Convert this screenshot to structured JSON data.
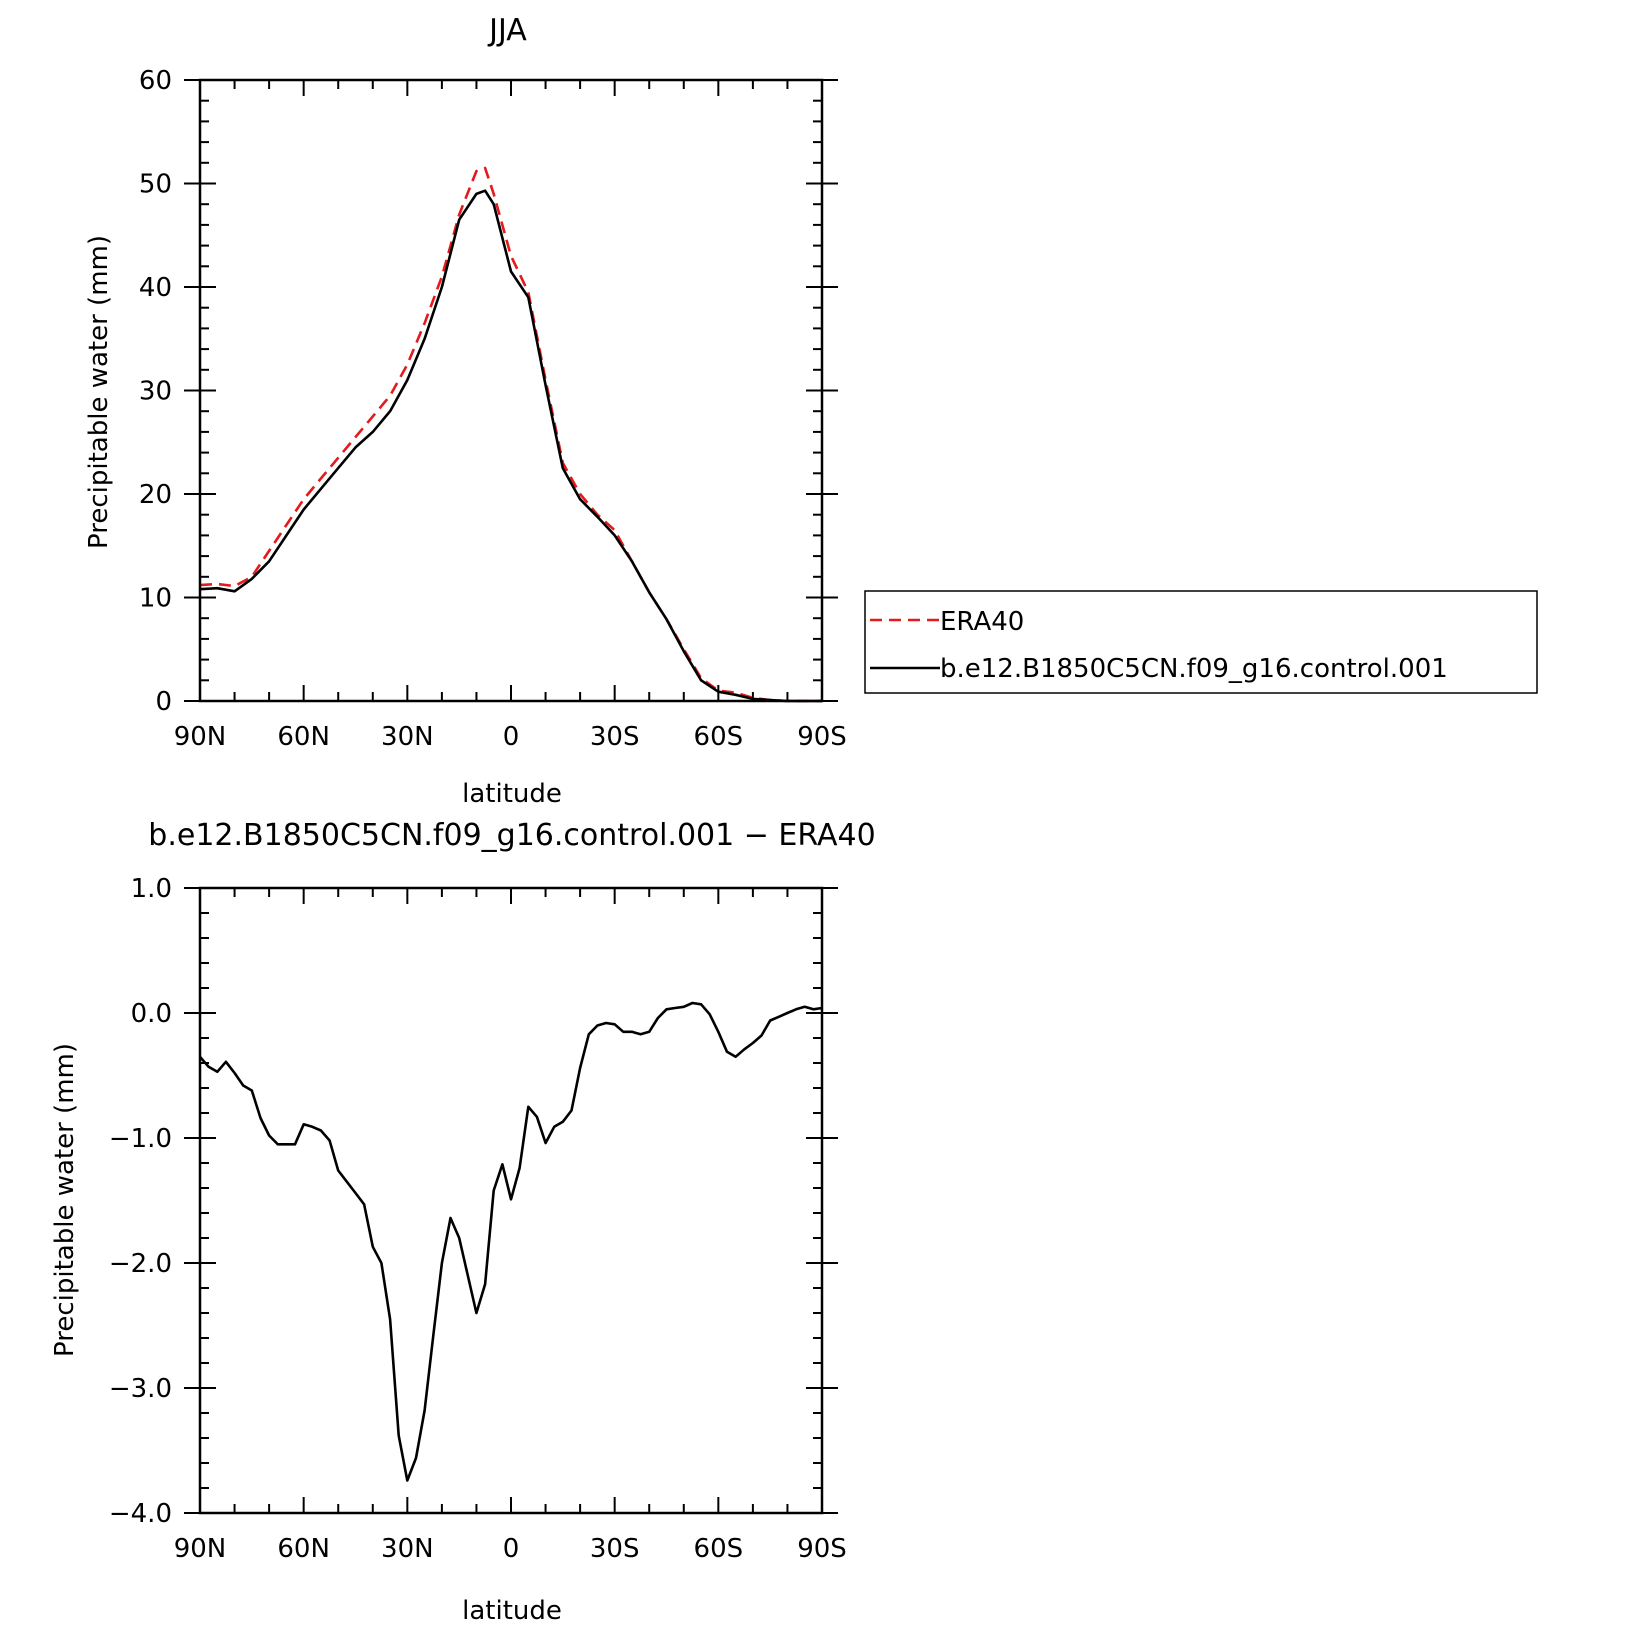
{
  "chart_data": [
    {
      "type": "line",
      "title": "JJA",
      "xlabel": "latitude",
      "ylabel": "Precipitable water (mm)",
      "xlim": [
        90,
        -90
      ],
      "ylim": [
        0,
        60
      ],
      "x_tick_values": [
        90,
        60,
        30,
        0,
        -30,
        -60,
        -90
      ],
      "x_tick_labels": [
        "90N",
        "60N",
        "30N",
        "0",
        "30S",
        "60S",
        "90S"
      ],
      "y_ticks": [
        0,
        10,
        20,
        30,
        40,
        50,
        60
      ],
      "y_tick_labels": [
        "0",
        "10",
        "20",
        "30",
        "40",
        "50",
        "60"
      ],
      "legend_position": "right",
      "series": [
        {
          "name": "ERA40",
          "color": "#e41a1c",
          "dash": "dashed",
          "x": [
            90,
            85,
            80,
            75,
            70,
            65,
            60,
            55,
            50,
            45,
            40,
            35,
            30,
            25,
            20,
            15,
            10,
            7.5,
            5,
            0,
            -5,
            -10,
            -15,
            -20,
            -25,
            -30,
            -35,
            -40,
            -45,
            -50,
            -55,
            -60,
            -65,
            -70,
            -75,
            -80,
            -85,
            -90
          ],
          "y": [
            11.2,
            11.3,
            11.1,
            12.0,
            14.5,
            17.0,
            19.5,
            21.5,
            23.5,
            25.5,
            27.5,
            29.5,
            32.5,
            36.5,
            41.0,
            47.0,
            51.2,
            51.5,
            49.0,
            43.0,
            39.5,
            31.0,
            23.0,
            20.0,
            18.0,
            16.5,
            13.5,
            10.5,
            7.9,
            5.0,
            2.2,
            1.0,
            0.8,
            0.3,
            0.1,
            0.0,
            0.0,
            0.0
          ]
        },
        {
          "name": "b.e12.B1850C5CN.f09_g16.control.001",
          "color": "#000000",
          "dash": "solid",
          "x": [
            90,
            85,
            80,
            75,
            70,
            65,
            60,
            55,
            50,
            45,
            40,
            35,
            30,
            25,
            20,
            15,
            10,
            7.5,
            5,
            0,
            -5,
            -10,
            -15,
            -20,
            -25,
            -30,
            -35,
            -40,
            -45,
            -50,
            -55,
            -60,
            -65,
            -70,
            -75,
            -80,
            -85,
            -90
          ],
          "y": [
            10.8,
            10.9,
            10.6,
            11.8,
            13.5,
            16.0,
            18.5,
            20.5,
            22.5,
            24.5,
            26.0,
            28.0,
            31.0,
            35.0,
            40.0,
            46.5,
            49.0,
            49.3,
            48.0,
            41.5,
            39.0,
            30.5,
            22.5,
            19.5,
            17.8,
            16.0,
            13.5,
            10.5,
            7.9,
            4.8,
            2.0,
            0.9,
            0.6,
            0.2,
            0.1,
            0.0,
            0.0,
            0.0
          ]
        }
      ]
    },
    {
      "type": "line",
      "title": "b.e12.B1850C5CN.f09_g16.control.001 − ERA40",
      "xlabel": "latitude",
      "ylabel": "Precipitable water (mm)",
      "xlim": [
        90,
        -90
      ],
      "ylim": [
        -4.0,
        1.0
      ],
      "x_tick_values": [
        90,
        60,
        30,
        0,
        -30,
        -60,
        -90
      ],
      "x_tick_labels": [
        "90N",
        "60N",
        "30N",
        "0",
        "30S",
        "60S",
        "90S"
      ],
      "y_ticks": [
        -4.0,
        -3.0,
        -2.0,
        -1.0,
        0.0,
        1.0
      ],
      "y_tick_labels": [
        "−4.0",
        "−3.0",
        "−2.0",
        "−1.0",
        "0.0",
        "1.0"
      ],
      "series": [
        {
          "color": "#000000",
          "dash": "solid",
          "x": [
            90,
            87.5,
            85,
            82.5,
            80,
            77.5,
            75,
            72.5,
            70,
            67.5,
            65,
            62.5,
            60,
            57.5,
            55,
            52.5,
            50,
            47.5,
            45,
            42.5,
            40,
            37.5,
            35,
            32.5,
            30,
            27.5,
            25,
            22.5,
            20,
            17.5,
            15,
            12.5,
            10,
            7.5,
            5,
            2.5,
            0,
            -2.5,
            -5,
            -7.5,
            -10,
            -12.5,
            -15,
            -17.5,
            -20,
            -22.5,
            -25,
            -27.5,
            -30,
            -32.5,
            -35,
            -37.5,
            -40,
            -42.5,
            -45,
            -47.5,
            -50,
            -52.5,
            -55,
            -57.5,
            -60,
            -62.5,
            -65,
            -67.5,
            -70,
            -72.5,
            -75,
            -77.5,
            -80,
            -82.5,
            -85,
            -87.5,
            -90
          ],
          "y": [
            -0.35,
            -0.43,
            -0.47,
            -0.39,
            -0.48,
            -0.58,
            -0.62,
            -0.84,
            -0.98,
            -1.05,
            -1.05,
            -1.05,
            -0.89,
            -0.91,
            -0.94,
            -1.02,
            -1.26,
            -1.35,
            -1.44,
            -1.53,
            -1.87,
            -2.0,
            -2.45,
            -3.38,
            -3.74,
            -3.56,
            -3.18,
            -2.58,
            -2.0,
            -1.64,
            -1.8,
            -2.1,
            -2.4,
            -2.17,
            -1.42,
            -1.21,
            -1.49,
            -1.24,
            -0.75,
            -0.83,
            -1.04,
            -0.91,
            -0.87,
            -0.78,
            -0.44,
            -0.17,
            -0.1,
            -0.08,
            -0.09,
            -0.15,
            -0.15,
            -0.17,
            -0.15,
            -0.04,
            0.03,
            0.04,
            0.05,
            0.08,
            0.07,
            -0.01,
            -0.15,
            -0.31,
            -0.35,
            -0.29,
            -0.24,
            -0.18,
            -0.06,
            -0.03,
            0.0,
            0.03,
            0.05,
            0.03,
            0.04
          ]
        }
      ]
    }
  ]
}
